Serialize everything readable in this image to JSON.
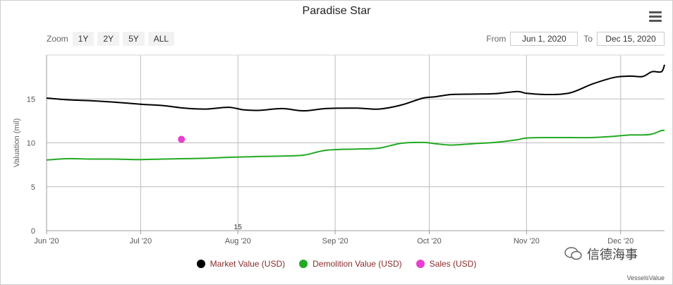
{
  "title": "Paradise Star",
  "zoom": {
    "label": "Zoom",
    "buttons": [
      "1Y",
      "2Y",
      "5Y",
      "ALL"
    ]
  },
  "range": {
    "from_label": "From",
    "from_value": "Jun 1, 2020",
    "to_label": "To",
    "to_value": "Dec 15, 2020"
  },
  "credit": "VesselsValue",
  "watermark": "信德海事",
  "chart_data": {
    "type": "line",
    "title": "Paradise Star",
    "ylabel": "Valuation (mil)",
    "ylim": [
      0,
      20
    ],
    "yticks": [
      "0",
      "5",
      "10",
      "15"
    ],
    "xlim": [
      "2020-06-01",
      "2020-12-15"
    ],
    "xticks": [
      {
        "date": "2020-06-01",
        "label": "Jun '20"
      },
      {
        "date": "2020-07-01",
        "label": "Jul '20"
      },
      {
        "date": "2020-08-01",
        "label": "Aug '20"
      },
      {
        "date": "2020-09-01",
        "label": "Sep '20"
      },
      {
        "date": "2020-10-01",
        "label": "Oct '20"
      },
      {
        "date": "2020-11-01",
        "label": "Nov '20"
      },
      {
        "date": "2020-12-01",
        "label": "Dec '20"
      }
    ],
    "stray_label": {
      "text": "15",
      "date": "2020-08-01",
      "y": 0
    },
    "grid": true,
    "legend_position": "bottom",
    "series": [
      {
        "name": "Market Value (USD)",
        "color": "#000000",
        "kind": "line",
        "points": [
          [
            "2020-06-01",
            15.1
          ],
          [
            "2020-06-08",
            14.9
          ],
          [
            "2020-06-15",
            14.8
          ],
          [
            "2020-06-22",
            14.65
          ],
          [
            "2020-07-01",
            14.4
          ],
          [
            "2020-07-08",
            14.25
          ],
          [
            "2020-07-15",
            13.95
          ],
          [
            "2020-07-22",
            13.85
          ],
          [
            "2020-07-29",
            14.05
          ],
          [
            "2020-08-03",
            13.75
          ],
          [
            "2020-08-08",
            13.7
          ],
          [
            "2020-08-15",
            13.9
          ],
          [
            "2020-08-22",
            13.65
          ],
          [
            "2020-08-29",
            13.9
          ],
          [
            "2020-09-08",
            13.95
          ],
          [
            "2020-09-15",
            13.85
          ],
          [
            "2020-09-22",
            14.3
          ],
          [
            "2020-09-29",
            15.1
          ],
          [
            "2020-10-03",
            15.25
          ],
          [
            "2020-10-08",
            15.5
          ],
          [
            "2020-10-15",
            15.55
          ],
          [
            "2020-10-22",
            15.6
          ],
          [
            "2020-10-29",
            15.85
          ],
          [
            "2020-11-01",
            15.65
          ],
          [
            "2020-11-08",
            15.5
          ],
          [
            "2020-11-15",
            15.7
          ],
          [
            "2020-11-22",
            16.7
          ],
          [
            "2020-11-29",
            17.45
          ],
          [
            "2020-12-04",
            17.6
          ],
          [
            "2020-12-08",
            17.55
          ],
          [
            "2020-12-11",
            18.1
          ],
          [
            "2020-12-14",
            18.1
          ],
          [
            "2020-12-15",
            18.9
          ]
        ]
      },
      {
        "name": "Demolition Value (USD)",
        "color": "#22aa22",
        "kind": "line",
        "points": [
          [
            "2020-06-01",
            8.05
          ],
          [
            "2020-06-08",
            8.2
          ],
          [
            "2020-06-15",
            8.15
          ],
          [
            "2020-06-22",
            8.15
          ],
          [
            "2020-07-01",
            8.1
          ],
          [
            "2020-07-08",
            8.15
          ],
          [
            "2020-07-15",
            8.2
          ],
          [
            "2020-07-22",
            8.25
          ],
          [
            "2020-07-29",
            8.35
          ],
          [
            "2020-08-03",
            8.4
          ],
          [
            "2020-08-08",
            8.45
          ],
          [
            "2020-08-15",
            8.5
          ],
          [
            "2020-08-22",
            8.6
          ],
          [
            "2020-08-29",
            9.15
          ],
          [
            "2020-09-08",
            9.3
          ],
          [
            "2020-09-15",
            9.4
          ],
          [
            "2020-09-22",
            9.95
          ],
          [
            "2020-09-29",
            10.05
          ],
          [
            "2020-10-03",
            9.9
          ],
          [
            "2020-10-08",
            9.75
          ],
          [
            "2020-10-15",
            9.9
          ],
          [
            "2020-10-22",
            10.05
          ],
          [
            "2020-10-29",
            10.35
          ],
          [
            "2020-11-01",
            10.55
          ],
          [
            "2020-11-08",
            10.6
          ],
          [
            "2020-11-15",
            10.6
          ],
          [
            "2020-11-22",
            10.6
          ],
          [
            "2020-11-29",
            10.75
          ],
          [
            "2020-12-04",
            10.9
          ],
          [
            "2020-12-08",
            10.9
          ],
          [
            "2020-12-11",
            11.0
          ],
          [
            "2020-12-14",
            11.4
          ],
          [
            "2020-12-15",
            11.4
          ]
        ]
      },
      {
        "name": "Sales (USD)",
        "color": "#e83fd0",
        "kind": "scatter",
        "points": [
          [
            "2020-07-14",
            10.4
          ]
        ]
      }
    ]
  }
}
